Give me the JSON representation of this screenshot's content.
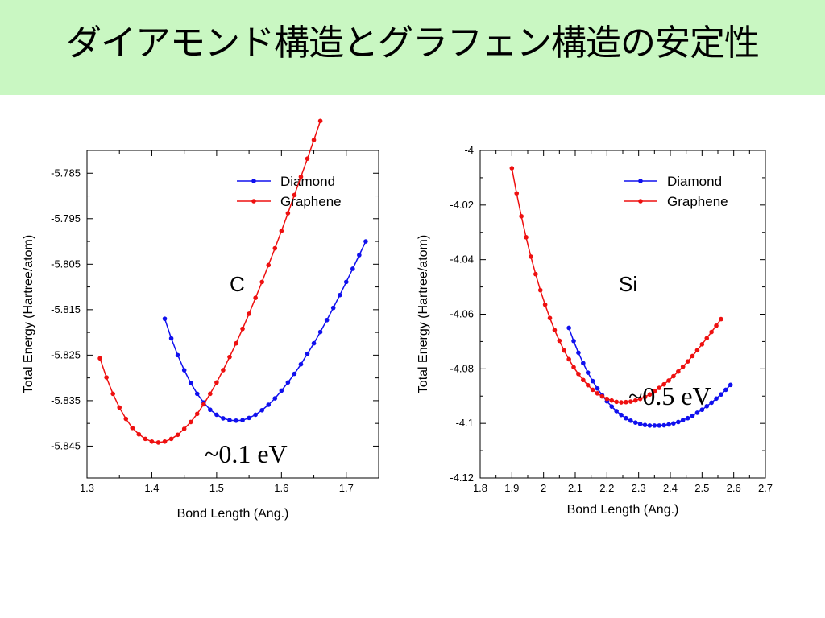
{
  "slide": {
    "title": "ダイアモンド構造とグラフェン構造の安定性"
  },
  "colors": {
    "banner": "#c9f7c2",
    "diamond": "#1010ee",
    "graphene": "#ee1010"
  },
  "chart_data": [
    {
      "type": "line",
      "element": "C",
      "annotation": "~0.1 eV",
      "xlabel": "Bond Length (Ang.)",
      "ylabel": "Total Energy (Hartree/atom)",
      "xlim": [
        1.3,
        1.75
      ],
      "ylim": [
        -5.852,
        -5.78
      ],
      "xticks": [
        1.3,
        1.4,
        1.5,
        1.6,
        1.7
      ],
      "xtick_labels": [
        "1.3",
        "1.4",
        "1.5",
        "1.6",
        "1.7"
      ],
      "yticks": [
        -5.785,
        -5.795,
        -5.805,
        -5.815,
        -5.825,
        -5.835,
        -5.845
      ],
      "ytick_labels": [
        "-5.785",
        "-5.795",
        "-5.805",
        "-5.815",
        "-5.825",
        "-5.835",
        "-5.845"
      ],
      "legend_position": "top-right",
      "series": [
        {
          "name": "Diamond",
          "color": "#1010ee",
          "x": [
            1.42,
            1.43,
            1.44,
            1.45,
            1.46,
            1.47,
            1.48,
            1.49,
            1.5,
            1.51,
            1.52,
            1.53,
            1.54,
            1.55,
            1.56,
            1.57,
            1.58,
            1.59,
            1.6,
            1.61,
            1.62,
            1.63,
            1.64,
            1.65,
            1.66,
            1.67,
            1.68,
            1.69,
            1.7,
            1.71,
            1.72,
            1.73
          ],
          "y": [
            -5.817,
            -5.8213,
            -5.825,
            -5.8283,
            -5.8311,
            -5.8335,
            -5.8354,
            -5.837,
            -5.8381,
            -5.8389,
            -5.8393,
            -5.8394,
            -5.8393,
            -5.8388,
            -5.8381,
            -5.8371,
            -5.8359,
            -5.8345,
            -5.8328,
            -5.831,
            -5.8291,
            -5.827,
            -5.8247,
            -5.8224,
            -5.8199,
            -5.8173,
            -5.8146,
            -5.8118,
            -5.8089,
            -5.806,
            -5.803,
            -5.8
          ]
        },
        {
          "name": "Graphene",
          "color": "#ee1010",
          "x": [
            1.32,
            1.33,
            1.34,
            1.35,
            1.36,
            1.37,
            1.38,
            1.39,
            1.4,
            1.41,
            1.42,
            1.43,
            1.44,
            1.45,
            1.46,
            1.47,
            1.48,
            1.49,
            1.5,
            1.51,
            1.52,
            1.53,
            1.54,
            1.55,
            1.56,
            1.57,
            1.58,
            1.59,
            1.6,
            1.61,
            1.62,
            1.63,
            1.64,
            1.65,
            1.66
          ],
          "y": [
            -5.8257,
            -5.8299,
            -5.8335,
            -5.8365,
            -5.839,
            -5.841,
            -5.8424,
            -5.8434,
            -5.844,
            -5.8442,
            -5.844,
            -5.8434,
            -5.8425,
            -5.8412,
            -5.8397,
            -5.8379,
            -5.8358,
            -5.8335,
            -5.831,
            -5.8283,
            -5.8254,
            -5.8224,
            -5.8192,
            -5.8159,
            -5.8124,
            -5.8089,
            -5.8052,
            -5.8015,
            -5.7977,
            -5.7938,
            -5.7898,
            -5.7858,
            -5.7818,
            -5.7777,
            -5.7735
          ]
        }
      ]
    },
    {
      "type": "line",
      "element": "Si",
      "annotation": "~0.5 eV",
      "xlabel": "Bond Length (Ang.)",
      "ylabel": "Total Energy (Hartree/atom)",
      "xlim": [
        1.8,
        2.7
      ],
      "ylim": [
        -4.12,
        -4.0
      ],
      "xticks": [
        1.8,
        1.9,
        2.0,
        2.1,
        2.2,
        2.3,
        2.4,
        2.5,
        2.6,
        2.7
      ],
      "xtick_labels": [
        "1.8",
        "1.9",
        "2",
        "2.1",
        "2.2",
        "2.3",
        "2.4",
        "2.5",
        "2.6",
        "2.7"
      ],
      "yticks": [
        -4.0,
        -4.02,
        -4.04,
        -4.06,
        -4.08,
        -4.1,
        -4.12
      ],
      "ytick_labels": [
        "-4",
        "-4.02",
        "-4.04",
        "-4.06",
        "-4.08",
        "-4.1",
        "-4.12"
      ],
      "legend_position": "top-right",
      "series": [
        {
          "name": "Diamond",
          "color": "#1010ee",
          "x": [
            2.08,
            2.095,
            2.11,
            2.125,
            2.14,
            2.155,
            2.17,
            2.185,
            2.2,
            2.215,
            2.23,
            2.245,
            2.26,
            2.275,
            2.29,
            2.305,
            2.32,
            2.335,
            2.35,
            2.365,
            2.38,
            2.395,
            2.41,
            2.425,
            2.44,
            2.455,
            2.47,
            2.485,
            2.5,
            2.515,
            2.53,
            2.545,
            2.56,
            2.575,
            2.59
          ],
          "y": [
            -4.065,
            -4.0698,
            -4.0741,
            -4.0779,
            -4.0814,
            -4.0845,
            -4.0872,
            -4.0897,
            -4.0919,
            -4.0938,
            -4.0955,
            -4.0969,
            -4.0981,
            -4.099,
            -4.0997,
            -4.1002,
            -4.1006,
            -4.1008,
            -4.1008,
            -4.1008,
            -4.1007,
            -4.1004,
            -4.1,
            -4.0995,
            -4.0988,
            -4.0981,
            -4.0972,
            -4.0961,
            -4.095,
            -4.0937,
            -4.0924,
            -4.0909,
            -4.0894,
            -4.0877,
            -4.0859
          ]
        },
        {
          "name": "Graphene",
          "color": "#ee1010",
          "x": [
            1.9,
            1.915,
            1.93,
            1.945,
            1.96,
            1.975,
            1.99,
            2.005,
            2.02,
            2.035,
            2.05,
            2.065,
            2.08,
            2.095,
            2.11,
            2.125,
            2.14,
            2.155,
            2.17,
            2.185,
            2.2,
            2.215,
            2.23,
            2.245,
            2.26,
            2.275,
            2.29,
            2.305,
            2.32,
            2.335,
            2.35,
            2.365,
            2.38,
            2.395,
            2.41,
            2.425,
            2.44,
            2.455,
            2.47,
            2.485,
            2.5,
            2.515,
            2.53,
            2.545,
            2.56
          ],
          "y": [
            -4.0065,
            -4.0157,
            -4.0241,
            -4.0318,
            -4.0389,
            -4.0453,
            -4.0512,
            -4.0565,
            -4.0614,
            -4.0658,
            -4.0697,
            -4.0733,
            -4.0765,
            -4.0794,
            -4.0819,
            -4.0841,
            -4.086,
            -4.0877,
            -4.089,
            -4.0901,
            -4.091,
            -4.0916,
            -4.0921,
            -4.0923,
            -4.0922,
            -4.092,
            -4.0916,
            -4.091,
            -4.0903,
            -4.0894,
            -4.0883,
            -4.087,
            -4.0857,
            -4.0843,
            -4.0827,
            -4.081,
            -4.0792,
            -4.0773,
            -4.0753,
            -4.0732,
            -4.071,
            -4.0688,
            -4.0665,
            -4.0642,
            -4.0618
          ]
        }
      ]
    }
  ]
}
